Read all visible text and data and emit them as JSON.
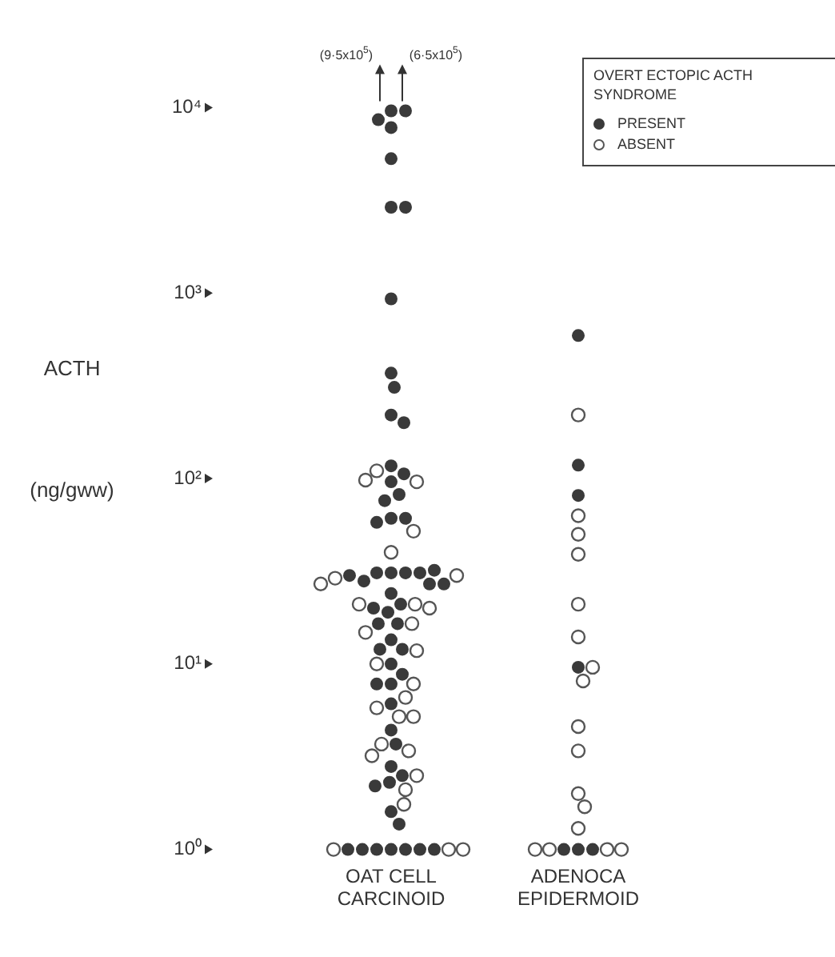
{
  "chart_data": {
    "type": "scatter",
    "ylabel": "ACTH (ng/gww)",
    "legend_title": "OVERT ECTOPIC ACTH SYNDROME",
    "legend": "top right",
    "marker": "circle",
    "log": "y",
    "grid": false,
    "categories": [
      "OAT CELL CARCINOID",
      "ADENOCA EPIDERMOID"
    ],
    "ylim": [
      1,
      10000
    ],
    "yticks": [
      {
        "value": 1,
        "label": "10⁰"
      },
      {
        "value": 10,
        "label": "10¹"
      },
      {
        "value": 100,
        "label": "10²"
      },
      {
        "value": 1000,
        "label": "10³"
      },
      {
        "value": 10000,
        "label": "10⁴"
      }
    ],
    "annotations": [
      {
        "text": "(9·5x10$^{5}$)",
        "x": "OAT CELL CARCINOID",
        "y": 9600
      },
      {
        "text": "(6·5x10$^{5}$)",
        "x": "OAT CELL CARCINOID",
        "y": 9600
      }
    ],
    "series": [
      {
        "name": "PRESENT",
        "color": "#3a3a3a",
        "x": [
          "OAT CELL CARCINOID",
          "OAT CELL CARCINOID",
          "OAT CELL CARCINOID",
          "OAT CELL CARCINOID",
          "OAT CELL CARCINOID",
          "OAT CELL CARCINOID",
          "OAT CELL CARCINOID",
          "OAT CELL CARCINOID",
          "OAT CELL CARCINOID",
          "OAT CELL CARCINOID",
          "OAT CELL CARCINOID",
          "OAT CELL CARCINOID",
          "OAT CELL CARCINOID",
          "OAT CELL CARCINOID",
          "OAT CELL CARCINOID",
          "OAT CELL CARCINOID",
          "OAT CELL CARCINOID",
          "OAT CELL CARCINOID",
          "OAT CELL CARCINOID",
          "OAT CELL CARCINOID",
          "OAT CELL CARCINOID",
          "OAT CELL CARCINOID",
          "OAT CELL CARCINOID",
          "OAT CELL CARCINOID",
          "OAT CELL CARCINOID",
          "OAT CELL CARCINOID",
          "OAT CELL CARCINOID",
          "OAT CELL CARCINOID",
          "OAT CELL CARCINOID",
          "OAT CELL CARCINOID",
          "OAT CELL CARCINOID",
          "OAT CELL CARCINOID",
          "OAT CELL CARCINOID",
          "OAT CELL CARCINOID",
          "OAT CELL CARCINOID",
          "OAT CELL CARCINOID",
          "OAT CELL CARCINOID",
          "OAT CELL CARCINOID",
          "OAT CELL CARCINOID",
          "OAT CELL CARCINOID",
          "OAT CELL CARCINOID",
          "OAT CELL CARCINOID",
          "OAT CELL CARCINOID",
          "OAT CELL CARCINOID",
          "OAT CELL CARCINOID",
          "OAT CELL CARCINOID",
          "OAT CELL CARCINOID",
          "OAT CELL CARCINOID",
          "OAT CELL CARCINOID",
          "OAT CELL CARCINOID",
          "OAT CELL CARCINOID",
          "OAT CELL CARCINOID",
          "OAT CELL CARCINOID",
          "OAT CELL CARCINOID",
          "OAT CELL CARCINOID",
          "OAT CELL CARCINOID",
          "OAT CELL CARCINOID",
          "OAT CELL CARCINOID",
          "ADENOCA EPIDERMOID",
          "ADENOCA EPIDERMOID",
          "ADENOCA EPIDERMOID",
          "ADENOCA EPIDERMOID",
          "ADENOCA EPIDERMOID",
          "ADENOCA EPIDERMOID",
          "ADENOCA EPIDERMOID"
        ],
        "values": [
          9600,
          9600,
          8600,
          7800,
          5300,
          2900,
          2900,
          930,
          370,
          310,
          220,
          200,
          117,
          106,
          96,
          82,
          76,
          61,
          61,
          58,
          31,
          31,
          31,
          31,
          28,
          30,
          32,
          27,
          27,
          24,
          21,
          19,
          20,
          16.5,
          16.5,
          13.5,
          12,
          12,
          10,
          8.8,
          7.8,
          7.8,
          6.1,
          4.4,
          3.7,
          2.8,
          2.5,
          2.3,
          2.2,
          1.6,
          1.37,
          1,
          1,
          1,
          1,
          1,
          1,
          1,
          590,
          118,
          81,
          9.6,
          1,
          1,
          1
        ]
      },
      {
        "name": "ABSENT",
        "color": "#555555",
        "x": [
          "OAT CELL CARCINOID",
          "OAT CELL CARCINOID",
          "OAT CELL CARCINOID",
          "OAT CELL CARCINOID",
          "OAT CELL CARCINOID",
          "OAT CELL CARCINOID",
          "OAT CELL CARCINOID",
          "OAT CELL CARCINOID",
          "OAT CELL CARCINOID",
          "OAT CELL CARCINOID",
          "OAT CELL CARCINOID",
          "OAT CELL CARCINOID",
          "OAT CELL CARCINOID",
          "OAT CELL CARCINOID",
          "OAT CELL CARCINOID",
          "OAT CELL CARCINOID",
          "OAT CELL CARCINOID",
          "OAT CELL CARCINOID",
          "OAT CELL CARCINOID",
          "OAT CELL CARCINOID",
          "OAT CELL CARCINOID",
          "OAT CELL CARCINOID",
          "OAT CELL CARCINOID",
          "OAT CELL CARCINOID",
          "OAT CELL CARCINOID",
          "OAT CELL CARCINOID",
          "OAT CELL CARCINOID",
          "OAT CELL CARCINOID",
          "OAT CELL CARCINOID",
          "ADENOCA EPIDERMOID",
          "ADENOCA EPIDERMOID",
          "ADENOCA EPIDERMOID",
          "ADENOCA EPIDERMOID",
          "ADENOCA EPIDERMOID",
          "ADENOCA EPIDERMOID",
          "ADENOCA EPIDERMOID",
          "ADENOCA EPIDERMOID",
          "ADENOCA EPIDERMOID",
          "ADENOCA EPIDERMOID",
          "ADENOCA EPIDERMOID",
          "ADENOCA EPIDERMOID",
          "ADENOCA EPIDERMOID",
          "ADENOCA EPIDERMOID",
          "ADENOCA EPIDERMOID",
          "ADENOCA EPIDERMOID",
          "ADENOCA EPIDERMOID"
        ],
        "values": [
          110,
          98,
          96,
          52,
          40,
          29,
          30,
          27,
          21,
          21,
          20,
          16.5,
          14.8,
          11.8,
          10,
          7.8,
          6.6,
          5.8,
          5.2,
          5.2,
          3.7,
          3.4,
          3.2,
          2.5,
          2.1,
          1.75,
          1,
          1,
          1,
          220,
          63,
          50,
          39,
          21,
          14,
          9.6,
          8.1,
          4.6,
          3.4,
          2.0,
          1.7,
          1.3,
          1,
          1,
          1,
          1
        ]
      }
    ]
  }
}
